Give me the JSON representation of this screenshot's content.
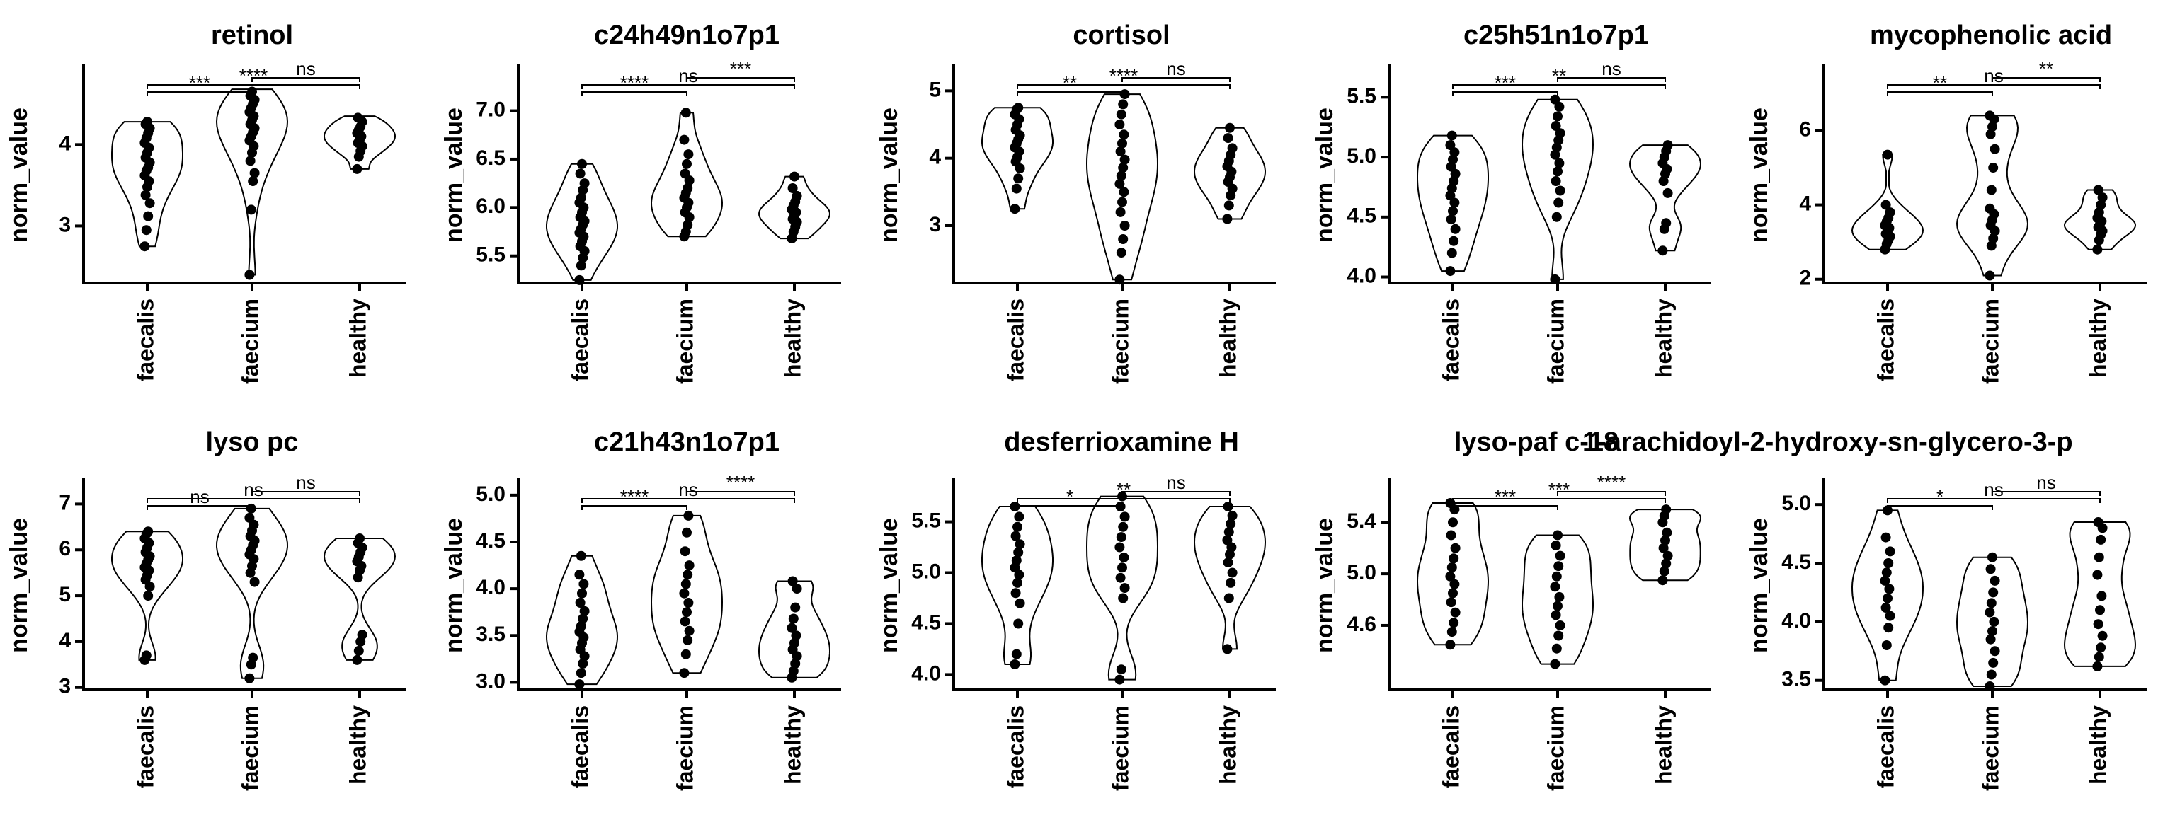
{
  "chart_data": [
    {
      "type": "violin",
      "title": "retinol",
      "ylabel": "norm_value",
      "categories": [
        "faecalis",
        "faecium",
        "healthy"
      ],
      "ylim": [
        2.3,
        4.95
      ],
      "yticks": [
        3,
        4
      ],
      "violins": [
        {
          "category": "faecalis",
          "min": 2.75,
          "max": 4.28,
          "median": 3.7,
          "points": [
            2.75,
            2.95,
            3.12,
            3.28,
            3.38,
            3.48,
            3.55,
            3.62,
            3.68,
            3.72,
            3.78,
            3.84,
            3.9,
            3.96,
            4.02,
            4.08,
            4.14,
            4.2,
            4.25,
            4.28
          ]
        },
        {
          "category": "faecium",
          "min": 2.4,
          "max": 4.68,
          "median": 4.1,
          "points": [
            2.4,
            3.2,
            3.55,
            3.65,
            3.8,
            3.9,
            3.98,
            4.05,
            4.1,
            4.15,
            4.2,
            4.25,
            4.3,
            4.35,
            4.4,
            4.45,
            4.5,
            4.55,
            4.6,
            4.65
          ]
        },
        {
          "category": "healthy",
          "min": 3.7,
          "max": 4.35,
          "median": 4.05,
          "points": [
            3.7,
            3.85,
            3.92,
            3.98,
            4.02,
            4.06,
            4.1,
            4.14,
            4.18,
            4.22,
            4.28,
            4.33
          ]
        }
      ],
      "comparisons": [
        {
          "a": 0,
          "b": 1,
          "label": "***"
        },
        {
          "a": 0,
          "b": 2,
          "label": "****"
        },
        {
          "a": 1,
          "b": 2,
          "label": "ns"
        }
      ]
    },
    {
      "type": "violin",
      "title": "c24h49n1o7p1",
      "ylabel": "norm_value",
      "categories": [
        "faecalis",
        "faecium",
        "healthy"
      ],
      "ylim": [
        5.22,
        7.45
      ],
      "yticks": [
        5.5,
        6.0,
        6.5,
        7.0
      ],
      "violins": [
        {
          "category": "faecalis",
          "min": 5.25,
          "max": 6.45,
          "median": 5.75,
          "points": [
            5.25,
            5.4,
            5.48,
            5.55,
            5.6,
            5.65,
            5.7,
            5.74,
            5.78,
            5.82,
            5.86,
            5.9,
            5.95,
            6.0,
            6.05,
            6.1,
            6.18,
            6.25,
            6.35,
            6.45
          ]
        },
        {
          "category": "faecium",
          "min": 5.7,
          "max": 6.98,
          "median": 6.1,
          "points": [
            5.7,
            5.75,
            5.82,
            5.9,
            5.95,
            6.0,
            6.05,
            6.1,
            6.15,
            6.2,
            6.28,
            6.35,
            6.45,
            6.55,
            6.7,
            6.98
          ]
        },
        {
          "category": "healthy",
          "min": 5.68,
          "max": 6.32,
          "median": 5.9,
          "points": [
            5.68,
            5.75,
            5.8,
            5.85,
            5.88,
            5.92,
            5.95,
            5.98,
            6.02,
            6.06,
            6.12,
            6.2,
            6.32
          ]
        }
      ],
      "comparisons": [
        {
          "a": 0,
          "b": 1,
          "label": "****"
        },
        {
          "a": 0,
          "b": 2,
          "label": "ns"
        },
        {
          "a": 1,
          "b": 2,
          "label": "***"
        }
      ]
    },
    {
      "type": "violin",
      "title": "cortisol",
      "ylabel": "norm_value",
      "categories": [
        "faecalis",
        "faecium",
        "healthy"
      ],
      "ylim": [
        2.15,
        5.35
      ],
      "yticks": [
        3,
        4,
        5
      ],
      "violins": [
        {
          "category": "faecalis",
          "min": 3.25,
          "max": 4.75,
          "median": 4.2,
          "points": [
            3.25,
            3.55,
            3.7,
            3.85,
            3.95,
            4.02,
            4.1,
            4.16,
            4.22,
            4.28,
            4.34,
            4.42,
            4.5,
            4.58,
            4.65,
            4.72,
            4.75
          ]
        },
        {
          "category": "faecium",
          "min": 2.2,
          "max": 4.95,
          "median": 3.8,
          "points": [
            2.2,
            2.6,
            2.8,
            3.0,
            3.2,
            3.35,
            3.5,
            3.62,
            3.74,
            3.86,
            3.98,
            4.1,
            4.22,
            4.35,
            4.5,
            4.65,
            4.8,
            4.95
          ]
        },
        {
          "category": "healthy",
          "min": 3.1,
          "max": 4.45,
          "median": 3.8,
          "points": [
            3.1,
            3.3,
            3.45,
            3.55,
            3.65,
            3.72,
            3.8,
            3.88,
            3.96,
            4.05,
            4.15,
            4.3,
            4.45
          ]
        }
      ],
      "comparisons": [
        {
          "a": 0,
          "b": 1,
          "label": "**"
        },
        {
          "a": 0,
          "b": 2,
          "label": "****"
        },
        {
          "a": 1,
          "b": 2,
          "label": "ns"
        }
      ]
    },
    {
      "type": "violin",
      "title": "c25h51n1o7p1",
      "ylabel": "norm_value",
      "categories": [
        "faecalis",
        "faecium",
        "healthy"
      ],
      "ylim": [
        3.95,
        5.75
      ],
      "yticks": [
        4.0,
        4.5,
        5.0,
        5.5
      ],
      "violins": [
        {
          "category": "faecalis",
          "min": 4.05,
          "max": 5.18,
          "median": 4.75,
          "points": [
            4.05,
            4.2,
            4.3,
            4.4,
            4.48,
            4.55,
            4.62,
            4.68,
            4.74,
            4.8,
            4.86,
            4.92,
            4.98,
            5.04,
            5.1,
            5.18
          ]
        },
        {
          "category": "faecium",
          "min": 3.98,
          "max": 5.48,
          "median": 4.95,
          "points": [
            3.98,
            4.5,
            4.62,
            4.72,
            4.8,
            4.88,
            4.95,
            5.02,
            5.08,
            5.14,
            5.2,
            5.26,
            5.34,
            5.42,
            5.48
          ]
        },
        {
          "category": "healthy",
          "min": 4.22,
          "max": 5.1,
          "median": 4.9,
          "points": [
            4.22,
            4.4,
            4.45,
            4.7,
            4.8,
            4.86,
            4.9,
            4.95,
            5.0,
            5.05,
            5.1
          ]
        }
      ],
      "comparisons": [
        {
          "a": 0,
          "b": 1,
          "label": "***"
        },
        {
          "a": 0,
          "b": 2,
          "label": "**"
        },
        {
          "a": 1,
          "b": 2,
          "label": "ns"
        }
      ]
    },
    {
      "type": "violin",
      "title": "mycophenolic acid",
      "ylabel": "norm_value",
      "categories": [
        "faecalis",
        "faecium",
        "healthy"
      ],
      "ylim": [
        1.9,
        7.7
      ],
      "yticks": [
        2,
        4,
        6
      ],
      "violins": [
        {
          "category": "faecalis",
          "min": 2.8,
          "max": 5.35,
          "median": 3.3,
          "points": [
            2.8,
            2.95,
            3.05,
            3.15,
            3.22,
            3.3,
            3.38,
            3.45,
            3.55,
            3.65,
            3.8,
            4.0,
            5.35
          ]
        },
        {
          "category": "faecium",
          "min": 2.1,
          "max": 6.4,
          "median": 3.5,
          "points": [
            2.1,
            2.9,
            3.1,
            3.3,
            3.45,
            3.6,
            3.75,
            3.9,
            4.4,
            5.0,
            5.5,
            5.9,
            6.1,
            6.3,
            6.4
          ]
        },
        {
          "category": "healthy",
          "min": 2.8,
          "max": 4.4,
          "median": 3.45,
          "points": [
            2.8,
            3.05,
            3.2,
            3.3,
            3.4,
            3.48,
            3.56,
            3.65,
            3.8,
            4.0,
            4.2,
            4.4
          ]
        }
      ],
      "comparisons": [
        {
          "a": 0,
          "b": 1,
          "label": "**"
        },
        {
          "a": 0,
          "b": 2,
          "label": "ns"
        },
        {
          "a": 1,
          "b": 2,
          "label": "**"
        }
      ]
    },
    {
      "type": "violin",
      "title": "lyso pc",
      "ylabel": "norm_value",
      "categories": [
        "faecalis",
        "faecium",
        "healthy"
      ],
      "ylim": [
        2.95,
        7.5
      ],
      "yticks": [
        3,
        4,
        5,
        6,
        7
      ],
      "violins": [
        {
          "category": "faecalis",
          "min": 3.6,
          "max": 6.4,
          "median": 5.65,
          "points": [
            3.6,
            3.7,
            5.0,
            5.2,
            5.35,
            5.45,
            5.55,
            5.62,
            5.7,
            5.78,
            5.86,
            5.95,
            6.05,
            6.15,
            6.25,
            6.35,
            6.4
          ]
        },
        {
          "category": "faecium",
          "min": 3.2,
          "max": 6.9,
          "median": 6.0,
          "points": [
            3.2,
            3.5,
            3.65,
            5.3,
            5.5,
            5.65,
            5.8,
            5.9,
            6.0,
            6.1,
            6.2,
            6.3,
            6.42,
            6.55,
            6.7,
            6.9
          ]
        },
        {
          "category": "healthy",
          "min": 3.6,
          "max": 6.25,
          "median": 5.75,
          "points": [
            3.6,
            3.8,
            4.0,
            4.15,
            5.4,
            5.55,
            5.65,
            5.75,
            5.85,
            5.95,
            6.05,
            6.15,
            6.25
          ]
        }
      ],
      "comparisons": [
        {
          "a": 0,
          "b": 1,
          "label": "ns"
        },
        {
          "a": 0,
          "b": 2,
          "label": "ns"
        },
        {
          "a": 1,
          "b": 2,
          "label": "ns"
        }
      ]
    },
    {
      "type": "violin",
      "title": "c21h43n1o7p1",
      "ylabel": "norm_value",
      "categories": [
        "faecalis",
        "faecium",
        "healthy"
      ],
      "ylim": [
        2.92,
        5.15
      ],
      "yticks": [
        3.0,
        3.5,
        4.0,
        4.5,
        5.0
      ],
      "violins": [
        {
          "category": "faecalis",
          "min": 2.98,
          "max": 4.35,
          "median": 3.5,
          "points": [
            2.98,
            3.1,
            3.2,
            3.28,
            3.35,
            3.42,
            3.48,
            3.54,
            3.6,
            3.68,
            3.76,
            3.85,
            3.95,
            4.05,
            4.15,
            4.35
          ]
        },
        {
          "category": "faecium",
          "min": 3.1,
          "max": 4.78,
          "median": 3.85,
          "points": [
            3.1,
            3.3,
            3.45,
            3.55,
            3.65,
            3.75,
            3.85,
            3.95,
            4.05,
            4.15,
            4.25,
            4.4,
            4.6,
            4.78
          ]
        },
        {
          "category": "healthy",
          "min": 3.05,
          "max": 4.08,
          "median": 3.4,
          "points": [
            3.05,
            3.12,
            3.2,
            3.28,
            3.35,
            3.42,
            3.5,
            3.58,
            3.68,
            3.8,
            4.0,
            4.08
          ]
        }
      ],
      "comparisons": [
        {
          "a": 0,
          "b": 1,
          "label": "****"
        },
        {
          "a": 0,
          "b": 2,
          "label": "ns"
        },
        {
          "a": 1,
          "b": 2,
          "label": "****"
        }
      ]
    },
    {
      "type": "violin",
      "title": "desferrioxamine H",
      "ylabel": "norm_value",
      "categories": [
        "faecalis",
        "faecium",
        "healthy"
      ],
      "ylim": [
        3.85,
        5.9
      ],
      "yticks": [
        4.0,
        4.5,
        5.0,
        5.5
      ],
      "violins": [
        {
          "category": "faecalis",
          "min": 4.1,
          "max": 5.65,
          "median": 5.05,
          "points": [
            4.1,
            4.2,
            4.5,
            4.7,
            4.8,
            4.9,
            4.98,
            5.05,
            5.12,
            5.2,
            5.28,
            5.36,
            5.45,
            5.55,
            5.65
          ]
        },
        {
          "category": "faecium",
          "min": 3.95,
          "max": 5.75,
          "median": 5.3,
          "points": [
            3.95,
            4.05,
            4.75,
            4.85,
            4.95,
            5.05,
            5.15,
            5.25,
            5.35,
            5.45,
            5.55,
            5.65,
            5.75
          ]
        },
        {
          "category": "healthy",
          "min": 4.25,
          "max": 5.65,
          "median": 5.25,
          "points": [
            4.25,
            4.75,
            4.9,
            5.0,
            5.1,
            5.18,
            5.25,
            5.32,
            5.4,
            5.48,
            5.56,
            5.65
          ]
        }
      ],
      "comparisons": [
        {
          "a": 0,
          "b": 1,
          "label": "*"
        },
        {
          "a": 0,
          "b": 2,
          "label": "**"
        },
        {
          "a": 1,
          "b": 2,
          "label": "ns"
        }
      ]
    },
    {
      "type": "violin",
      "title": "lyso-paf c-18",
      "title_overlap": "1-arachidoyl-2-hydroxy-sn-glycero-3-p",
      "ylabel": "norm_value",
      "categories": [
        "faecalis",
        "faecium",
        "healthy"
      ],
      "ylim": [
        4.1,
        5.72
      ],
      "yticks": [
        4.6,
        5.0,
        5.4
      ],
      "violins": [
        {
          "category": "faecalis",
          "min": 4.45,
          "max": 5.55,
          "median": 4.95,
          "points": [
            4.45,
            4.55,
            4.62,
            4.7,
            4.78,
            4.85,
            4.92,
            4.98,
            5.05,
            5.12,
            5.2,
            5.3,
            5.4,
            5.5,
            5.55
          ]
        },
        {
          "category": "faecium",
          "min": 4.3,
          "max": 5.3,
          "median": 4.8,
          "points": [
            4.3,
            4.42,
            4.52,
            4.6,
            4.68,
            4.75,
            4.82,
            4.9,
            4.98,
            5.06,
            5.14,
            5.22,
            5.3
          ]
        },
        {
          "category": "healthy",
          "min": 4.95,
          "max": 5.5,
          "median": 5.2,
          "points": [
            4.95,
            5.02,
            5.08,
            5.14,
            5.2,
            5.26,
            5.32,
            5.4,
            5.45,
            5.5
          ]
        }
      ],
      "comparisons": [
        {
          "a": 0,
          "b": 1,
          "label": "***"
        },
        {
          "a": 0,
          "b": 2,
          "label": "***"
        },
        {
          "a": 1,
          "b": 2,
          "label": "****"
        }
      ]
    },
    {
      "type": "violin",
      "title": "",
      "ylabel": "norm_value",
      "categories": [
        "faecalis",
        "faecium",
        "healthy"
      ],
      "ylim": [
        3.42,
        5.2
      ],
      "yticks": [
        3.5,
        4.0,
        4.5,
        5.0
      ],
      "violins": [
        {
          "category": "faecalis",
          "min": 3.5,
          "max": 4.95,
          "median": 4.25,
          "points": [
            3.5,
            3.8,
            3.95,
            4.05,
            4.12,
            4.2,
            4.28,
            4.35,
            4.42,
            4.5,
            4.6,
            4.72,
            4.95
          ]
        },
        {
          "category": "faecium",
          "min": 3.45,
          "max": 4.55,
          "median": 4.0,
          "points": [
            3.45,
            3.55,
            3.65,
            3.75,
            3.85,
            3.92,
            4.0,
            4.08,
            4.16,
            4.25,
            4.35,
            4.45,
            4.55
          ]
        },
        {
          "category": "healthy",
          "min": 3.62,
          "max": 4.85,
          "median": 4.0,
          "points": [
            3.62,
            3.7,
            3.78,
            3.88,
            3.98,
            4.1,
            4.22,
            4.4,
            4.55,
            4.7,
            4.8,
            4.85
          ]
        }
      ],
      "comparisons": [
        {
          "a": 0,
          "b": 1,
          "label": "*"
        },
        {
          "a": 0,
          "b": 2,
          "label": "ns"
        },
        {
          "a": 1,
          "b": 2,
          "label": "ns"
        }
      ]
    }
  ]
}
